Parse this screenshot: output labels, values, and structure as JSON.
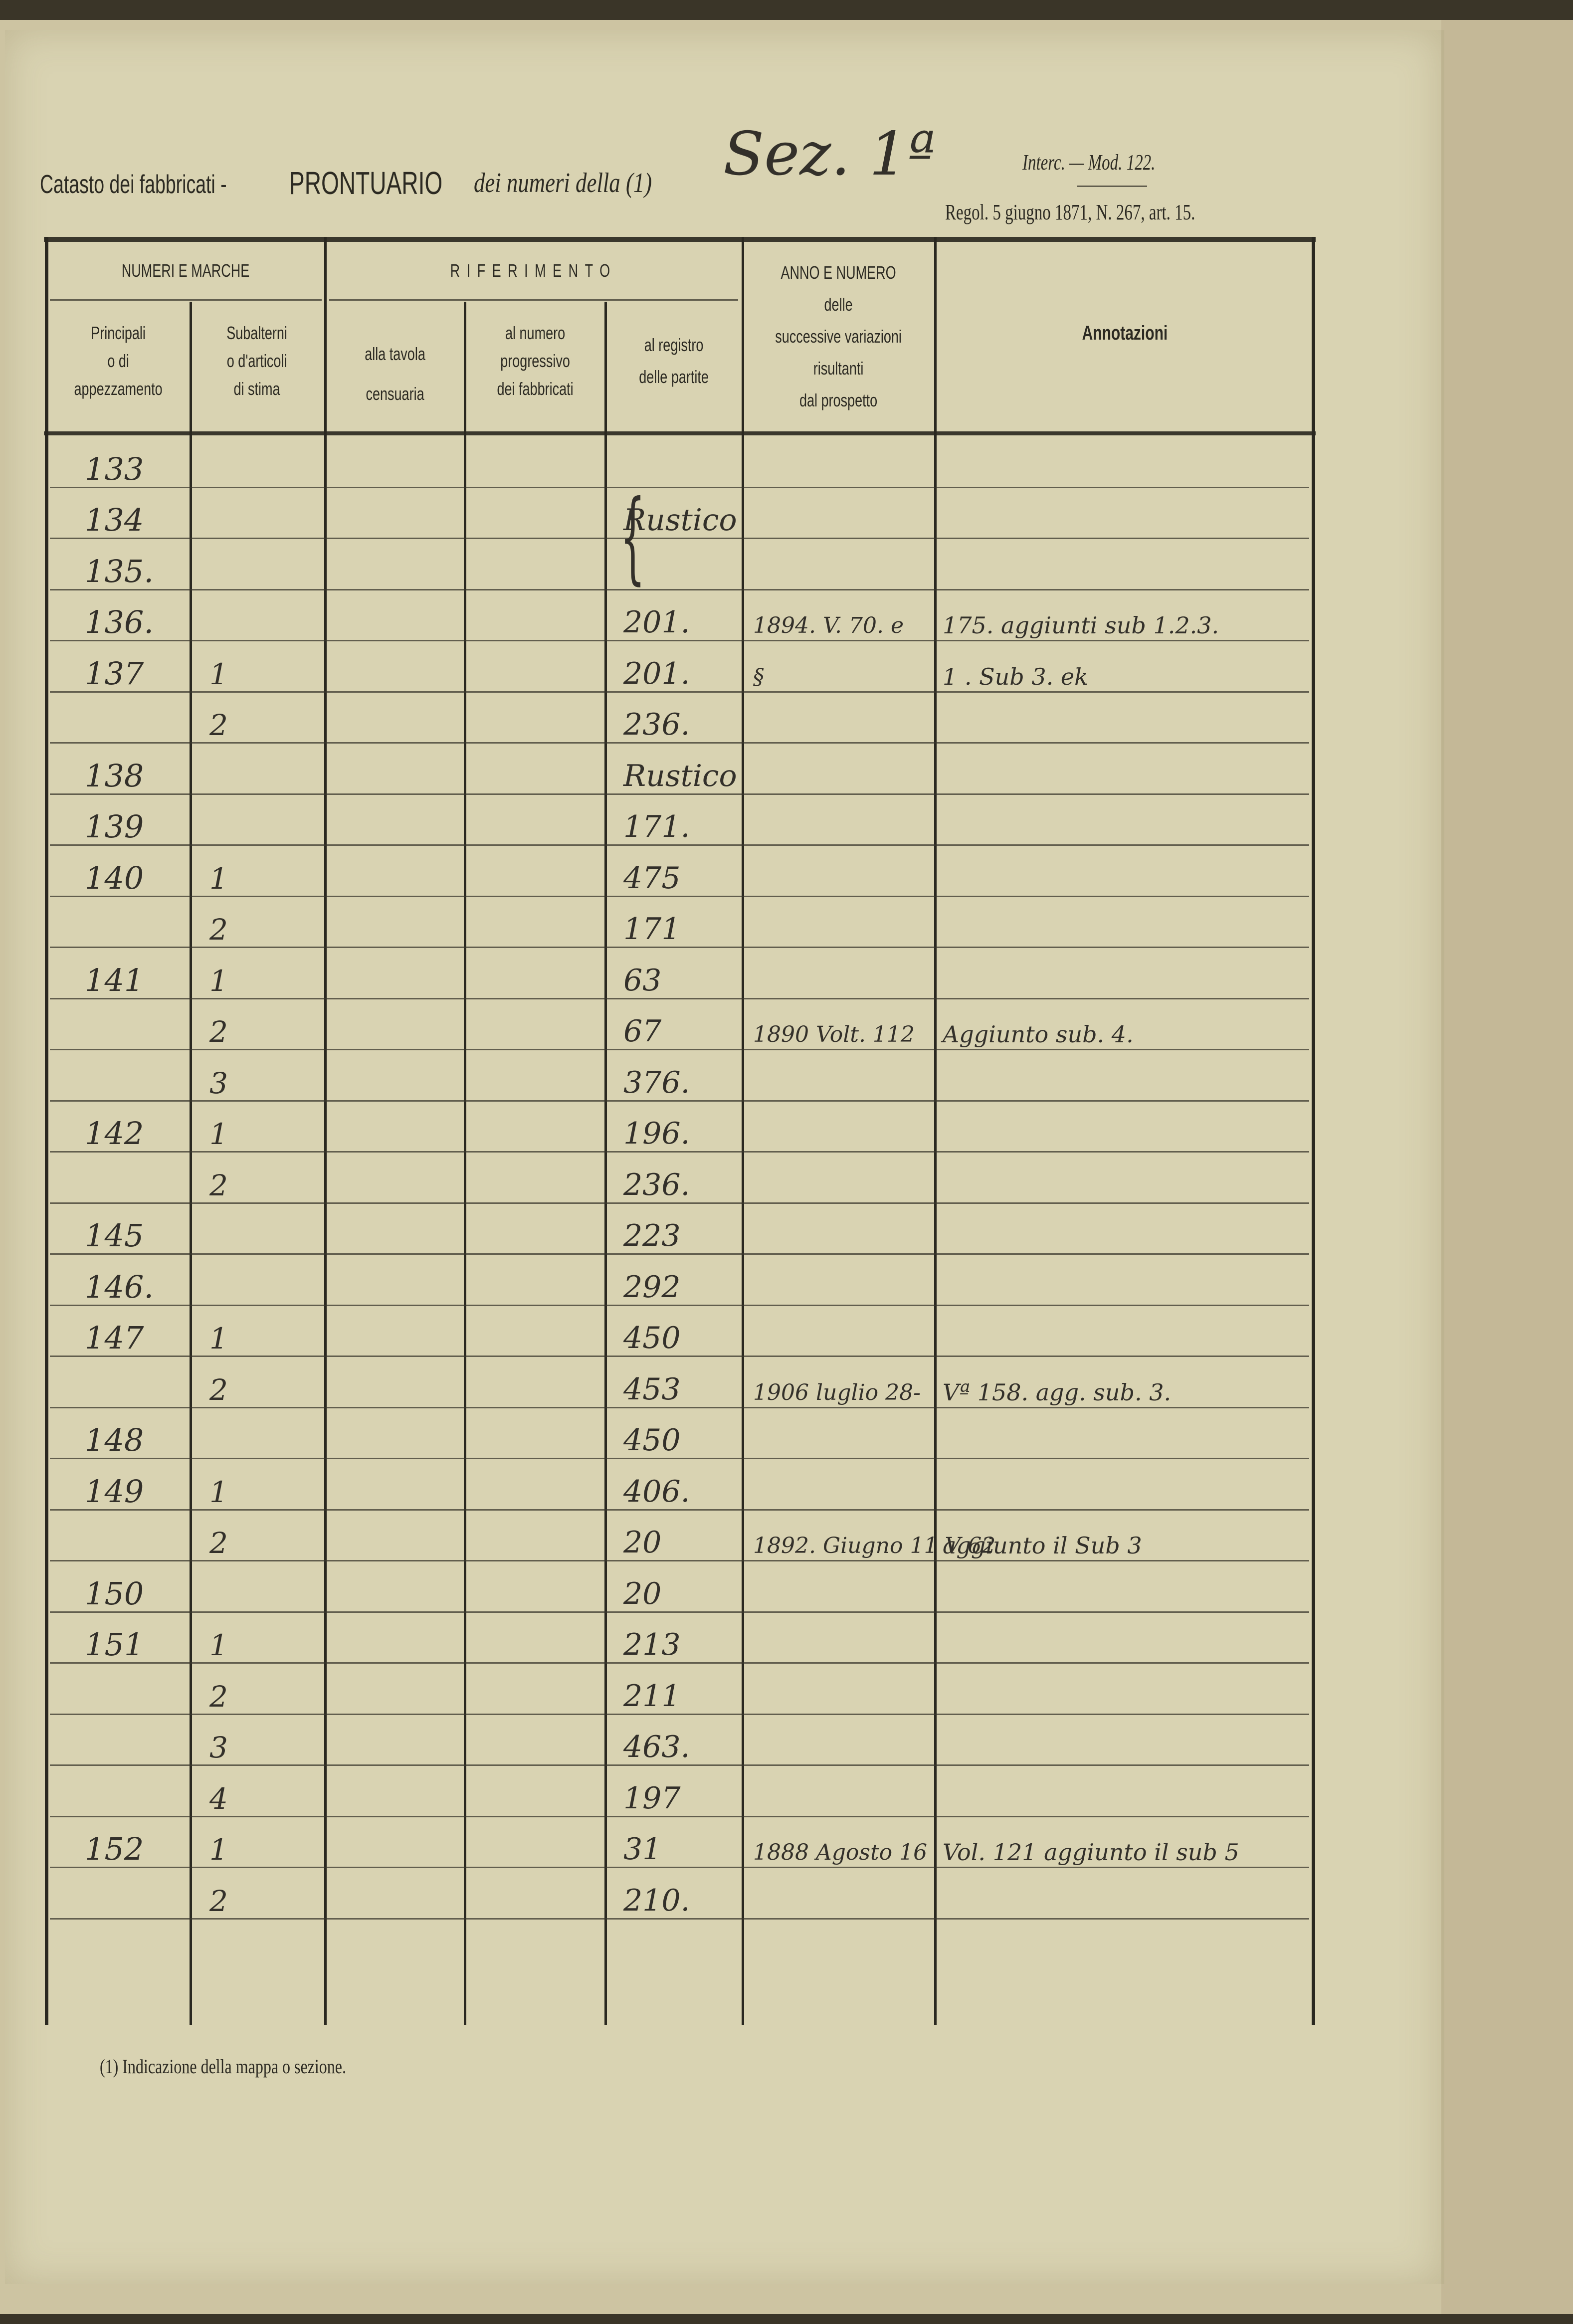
{
  "header": {
    "form_title_prefix": "Catasto dei fabbricati -",
    "form_title_bold": "PRONTUARIO",
    "form_title_suffix": "dei numeri della (1)",
    "handwritten_section": "Sez. 1ª",
    "model": "Interc. — Mod. 122.",
    "regulation": "Regol. 5 giugno 1871, N. 267, art. 15."
  },
  "columns": {
    "group_numeri": "NUMERI E MARCHE",
    "group_riferimento": "RIFERIMENTO",
    "principali": "Principali\no di\nappezzamento",
    "subalterni": "Subalterni\no d'articoli\ndi stima",
    "tavola": "alla tavola\ncensuaria",
    "progressivo": "al numero\nprogressivo\ndei fabbricati",
    "registro": "al registro\ndelle partite",
    "anno": "ANNO E NUMERO\ndelle\nsuccessive variazioni\nrisultanti\ndal prospetto",
    "annotazioni": "Annotazioni"
  },
  "rows": [
    {
      "principale": "133",
      "sub": "",
      "registro": "",
      "anno": "",
      "annot": ""
    },
    {
      "principale": "134",
      "sub": "",
      "registro": "Rustico",
      "anno": "",
      "annot": ""
    },
    {
      "principale": "135.",
      "sub": "",
      "registro": "",
      "anno": "",
      "annot": ""
    },
    {
      "principale": "136.",
      "sub": "",
      "registro": "201.",
      "anno": "1894. V. 70. e",
      "annot": "175. aggiunti sub 1.2.3."
    },
    {
      "principale": "137",
      "sub": "1",
      "registro": "201.",
      "anno": "§",
      "annot": "1 . Sub 3. ek"
    },
    {
      "principale": "",
      "sub": "2",
      "registro": "236.",
      "anno": "",
      "annot": ""
    },
    {
      "principale": "138",
      "sub": "",
      "registro": "Rustico",
      "anno": "",
      "annot": ""
    },
    {
      "principale": "139",
      "sub": "",
      "registro": "171.",
      "anno": "",
      "annot": ""
    },
    {
      "principale": "140",
      "sub": "1",
      "registro": "475",
      "anno": "",
      "annot": ""
    },
    {
      "principale": "",
      "sub": "2",
      "registro": "171",
      "anno": "",
      "annot": ""
    },
    {
      "principale": "141",
      "sub": "1",
      "registro": "63",
      "anno": "",
      "annot": ""
    },
    {
      "principale": "",
      "sub": "2",
      "registro": "67",
      "anno": "1890 Volt. 112",
      "annot": "Aggiunto sub. 4."
    },
    {
      "principale": "",
      "sub": "3",
      "registro": "376.",
      "anno": "",
      "annot": ""
    },
    {
      "principale": "142",
      "sub": "1",
      "registro": "196.",
      "anno": "",
      "annot": ""
    },
    {
      "principale": "",
      "sub": "2",
      "registro": "236.",
      "anno": "",
      "annot": ""
    },
    {
      "principale": "145",
      "sub": "",
      "registro": "223",
      "anno": "",
      "annot": ""
    },
    {
      "principale": "146.",
      "sub": "",
      "registro": "292",
      "anno": "",
      "annot": ""
    },
    {
      "principale": "147",
      "sub": "1",
      "registro": "450",
      "anno": "",
      "annot": ""
    },
    {
      "principale": "",
      "sub": "2",
      "registro": "453",
      "anno": "1906 luglio 28-",
      "annot": "Vª 158. agg. sub. 3."
    },
    {
      "principale": "148",
      "sub": "",
      "registro": "450",
      "anno": "",
      "annot": ""
    },
    {
      "principale": "149",
      "sub": "1",
      "registro": "406.",
      "anno": "",
      "annot": ""
    },
    {
      "principale": "",
      "sub": "2",
      "registro": "20",
      "anno": "1892. Giugno 11 V 62",
      "annot": "aggiunto il Sub 3"
    },
    {
      "principale": "150",
      "sub": "",
      "registro": "20",
      "anno": "",
      "annot": ""
    },
    {
      "principale": "151",
      "sub": "1",
      "registro": "213",
      "anno": "",
      "annot": ""
    },
    {
      "principale": "",
      "sub": "2",
      "registro": "211",
      "anno": "",
      "annot": ""
    },
    {
      "principale": "",
      "sub": "3",
      "registro": "463.",
      "anno": "",
      "annot": ""
    },
    {
      "principale": "",
      "sub": "4",
      "registro": "197",
      "anno": "",
      "annot": ""
    },
    {
      "principale": "152",
      "sub": "1",
      "registro": "31",
      "anno": "1888 Agosto 16",
      "annot": "Vol. 121 aggiunto il sub 5"
    },
    {
      "principale": "",
      "sub": "2",
      "registro": "210.",
      "anno": "",
      "annot": ""
    }
  ],
  "footnote": "(1) Indicazione della mappa o sezione."
}
